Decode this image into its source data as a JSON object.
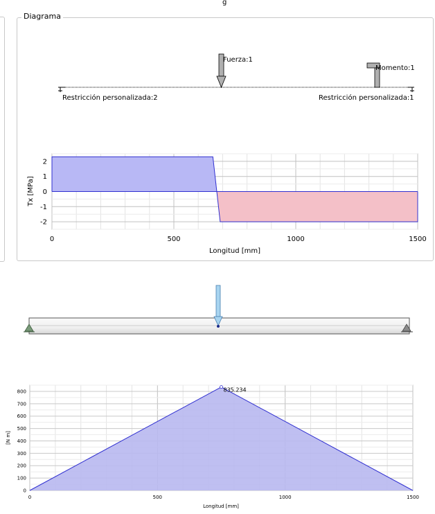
{
  "window": {
    "title_fragment": "g"
  },
  "diagram_panel": {
    "title": "Diagrama",
    "beam": {
      "force_label": "Fuerza:1",
      "moment_label": "Momento:1",
      "support_left_label": "Restricción personalizada:2",
      "support_right_label": "Restricción personalizada:1"
    },
    "shear_chart": {
      "ylabel": "Tx [MPa]",
      "xlabel": "Longitud [mm]",
      "y_ticks": [
        "2",
        "1",
        "0",
        "-1",
        "-2"
      ],
      "x_ticks": [
        "0",
        "500",
        "1000",
        "1500"
      ]
    }
  },
  "model_view": {
    "beam_color": "#f2f2f2",
    "load_color": "#a8d4f0",
    "support_color": "#7a9a7a"
  },
  "moment_chart": {
    "ylabel": "[N m]",
    "xlabel": "Longitud [mm]",
    "peak_label": "835.234",
    "y_ticks": [
      "800",
      "700",
      "600",
      "500",
      "400",
      "300",
      "200",
      "100",
      "0"
    ],
    "x_ticks": [
      "0",
      "500",
      "1000",
      "1500"
    ]
  },
  "chart_data": [
    {
      "type": "area",
      "xlabel": "Longitud [mm]",
      "ylabel": "Tx [MPa]",
      "xlim": [
        0,
        1500
      ],
      "ylim": [
        -2.5,
        2.5
      ],
      "grid": true,
      "series": [
        {
          "x": [
            0,
            0,
            660,
            690,
            1500,
            1500
          ],
          "y": [
            0,
            2.3,
            2.3,
            -2.0,
            -2.0,
            0
          ],
          "color": "#8080ff"
        }
      ]
    },
    {
      "type": "area",
      "xlabel": "Longitud [mm]",
      "ylabel": "[N m]",
      "xlim": [
        0,
        1500
      ],
      "ylim": [
        0,
        850
      ],
      "grid": true,
      "series": [
        {
          "x": [
            0,
            750,
            1500
          ],
          "y": [
            0,
            835.234,
            0
          ],
          "color": "#8080ff"
        }
      ],
      "annotations": [
        {
          "x": 750,
          "y": 835.234,
          "text": "835.234"
        }
      ]
    }
  ]
}
